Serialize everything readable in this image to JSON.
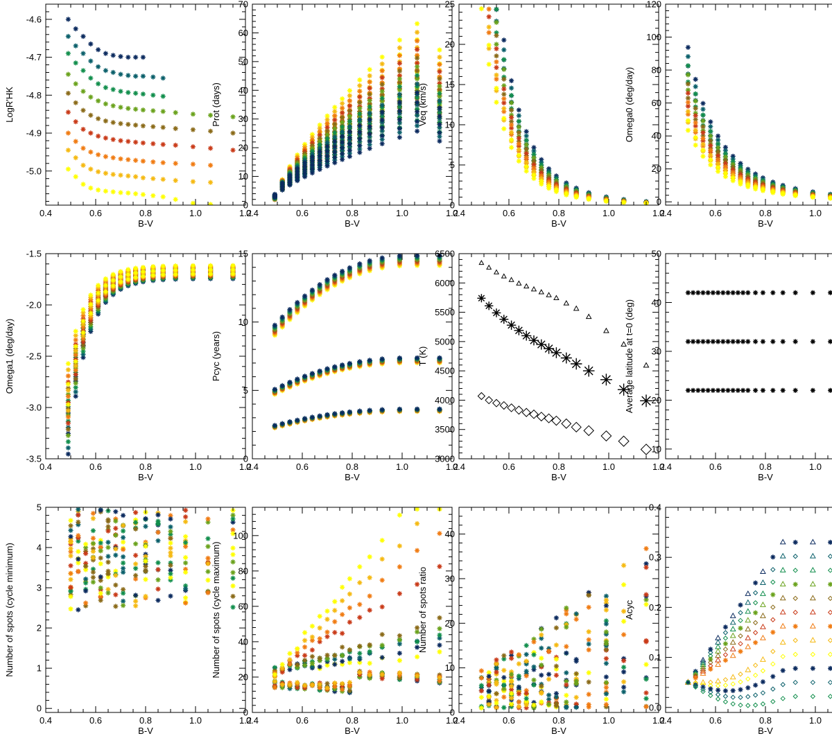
{
  "figure": {
    "palette": [
      "#0b2a5e",
      "#0a5f6a",
      "#118e4c",
      "#6aa21c",
      "#8a6a18",
      "#c93a18",
      "#f07b12",
      "#f5b911",
      "#ffff00"
    ],
    "ink": "#000000"
  },
  "chart_data": [
    {
      "id": "p1",
      "type": "scatter",
      "xlabel": "B-V",
      "ylabel": "LogR'HK",
      "xlim": [
        0.4,
        1.2
      ],
      "ylim": [
        -5.09,
        -4.56
      ],
      "xticks": [
        0.4,
        0.6,
        0.8,
        1.0,
        1.2
      ],
      "yticks": [
        -5.0,
        -4.9,
        -4.8,
        -4.7,
        -4.6
      ],
      "series": [
        {
          "name": "c0",
          "color_index": 0,
          "x": [
            0.49,
            0.52,
            0.55,
            0.58,
            0.61,
            0.64,
            0.67,
            0.7,
            0.73,
            0.76,
            0.79
          ],
          "y": [
            -4.6,
            -4.625,
            -4.645,
            -4.665,
            -4.68,
            -4.69,
            -4.695,
            -4.698,
            -4.7,
            -4.7,
            -4.7
          ]
        },
        {
          "name": "c1",
          "color_index": 1,
          "x": [
            0.49,
            0.52,
            0.55,
            0.58,
            0.61,
            0.64,
            0.67,
            0.7,
            0.73,
            0.76,
            0.79,
            0.83,
            0.87
          ],
          "y": [
            -4.645,
            -4.67,
            -4.69,
            -4.71,
            -4.725,
            -4.735,
            -4.74,
            -4.745,
            -4.748,
            -4.75,
            -4.75,
            -4.752,
            -4.755
          ]
        },
        {
          "name": "c2",
          "color_index": 2,
          "x": [
            0.49,
            0.52,
            0.55,
            0.58,
            0.61,
            0.64,
            0.67,
            0.7,
            0.73,
            0.76,
            0.79,
            0.83,
            0.87
          ],
          "y": [
            -4.69,
            -4.715,
            -4.735,
            -4.755,
            -4.77,
            -4.78,
            -4.785,
            -4.79,
            -4.793,
            -4.795,
            -4.797,
            -4.8,
            -4.803
          ]
        },
        {
          "name": "c3",
          "color_index": 3,
          "x": [
            0.49,
            0.52,
            0.55,
            0.58,
            0.61,
            0.64,
            0.67,
            0.7,
            0.73,
            0.76,
            0.79,
            0.83,
            0.87,
            0.92,
            0.99,
            1.06,
            1.15
          ],
          "y": [
            -4.745,
            -4.77,
            -4.79,
            -4.805,
            -4.815,
            -4.823,
            -4.828,
            -4.832,
            -4.835,
            -4.837,
            -4.839,
            -4.841,
            -4.843,
            -4.846,
            -4.85,
            -4.853,
            -4.857
          ]
        },
        {
          "name": "c4",
          "color_index": 4,
          "x": [
            0.49,
            0.52,
            0.55,
            0.58,
            0.61,
            0.64,
            0.67,
            0.7,
            0.73,
            0.76,
            0.79,
            0.83,
            0.87,
            0.92,
            0.99,
            1.06,
            1.15
          ],
          "y": [
            -4.795,
            -4.82,
            -4.84,
            -4.853,
            -4.862,
            -4.868,
            -4.872,
            -4.875,
            -4.877,
            -4.879,
            -4.881,
            -4.883,
            -4.885,
            -4.888,
            -4.891,
            -4.895,
            -4.9
          ]
        },
        {
          "name": "c5",
          "color_index": 5,
          "x": [
            0.49,
            0.52,
            0.55,
            0.58,
            0.61,
            0.64,
            0.67,
            0.7,
            0.73,
            0.76,
            0.79,
            0.83,
            0.87,
            0.92,
            0.99,
            1.06,
            1.15
          ],
          "y": [
            -4.845,
            -4.87,
            -4.89,
            -4.9,
            -4.908,
            -4.913,
            -4.917,
            -4.92,
            -4.922,
            -4.924,
            -4.926,
            -4.928,
            -4.93,
            -4.932,
            -4.936,
            -4.94,
            -4.945
          ]
        },
        {
          "name": "c6",
          "color_index": 6,
          "x": [
            0.49,
            0.52,
            0.55,
            0.58,
            0.61,
            0.64,
            0.67,
            0.7,
            0.73,
            0.76,
            0.79,
            0.83,
            0.87,
            0.92,
            0.99,
            1.06
          ],
          "y": [
            -4.9,
            -4.922,
            -4.94,
            -4.95,
            -4.957,
            -4.962,
            -4.965,
            -4.968,
            -4.97,
            -4.972,
            -4.974,
            -4.976,
            -4.978,
            -4.98,
            -4.982,
            -4.985
          ]
        },
        {
          "name": "c7",
          "color_index": 7,
          "x": [
            0.49,
            0.52,
            0.55,
            0.58,
            0.61,
            0.64,
            0.67,
            0.7,
            0.73,
            0.76,
            0.79,
            0.83,
            0.87,
            0.92,
            0.99,
            1.06
          ],
          "y": [
            -4.945,
            -4.965,
            -4.985,
            -4.995,
            -5.002,
            -5.006,
            -5.009,
            -5.011,
            -5.013,
            -5.015,
            -5.018,
            -5.02,
            -5.022,
            -5.025,
            -5.028,
            -5.03
          ]
        },
        {
          "name": "c8",
          "color_index": 8,
          "x": [
            0.49,
            0.52,
            0.55,
            0.58,
            0.61,
            0.64,
            0.67,
            0.7,
            0.73,
            0.76,
            0.79,
            0.83,
            0.87,
            0.92,
            0.99,
            1.06
          ],
          "y": [
            -4.995,
            -5.015,
            -5.035,
            -5.045,
            -5.05,
            -5.053,
            -5.055,
            -5.057,
            -5.058,
            -5.06,
            -5.062,
            -5.065,
            -5.068,
            -5.075,
            -5.085,
            -5.088
          ]
        }
      ]
    },
    {
      "id": "p2",
      "type": "scatter",
      "xlabel": "B-V",
      "ylabel": "Prot (days)",
      "xlim": [
        0.4,
        1.2
      ],
      "ylim": [
        0,
        70
      ],
      "xticks": [
        0.4,
        0.6,
        0.8,
        1.0,
        1.2
      ],
      "yticks": [
        0,
        10,
        20,
        30,
        40,
        50,
        60,
        70
      ],
      "family": {
        "kind": "prot",
        "xs": [
          0.49,
          0.52,
          0.55,
          0.58,
          0.61,
          0.64,
          0.67,
          0.7,
          0.73,
          0.76,
          0.79,
          0.83,
          0.87,
          0.92,
          0.99,
          1.06,
          1.15
        ],
        "n_curves": 9
      }
    },
    {
      "id": "p3",
      "type": "scatter",
      "xlabel": "B-V",
      "ylabel": "Veq (km/s)",
      "xlim": [
        0.4,
        1.2
      ],
      "ylim": [
        0,
        25
      ],
      "xticks": [
        0.4,
        0.6,
        0.8,
        1.0,
        1.2
      ],
      "yticks": [
        0,
        5,
        10,
        15,
        20,
        25
      ],
      "family": {
        "kind": "veq",
        "xs": [
          0.49,
          0.52,
          0.55,
          0.58,
          0.61,
          0.64,
          0.67,
          0.7,
          0.73,
          0.76,
          0.79,
          0.83,
          0.87,
          0.92,
          0.99,
          1.06,
          1.15
        ],
        "n_curves": 9
      }
    },
    {
      "id": "p4",
      "type": "scatter",
      "xlabel": "B-V",
      "ylabel": "Omega0 (deg/day)",
      "xlim": [
        0.4,
        1.2
      ],
      "ylim": [
        -2,
        120
      ],
      "xticks": [
        0.4,
        0.6,
        0.8,
        1.0,
        1.2
      ],
      "yticks": [
        0,
        20,
        40,
        60,
        80,
        100,
        120
      ],
      "family": {
        "kind": "omega0",
        "xs": [
          0.49,
          0.52,
          0.55,
          0.58,
          0.61,
          0.64,
          0.67,
          0.7,
          0.73,
          0.76,
          0.79,
          0.83,
          0.87,
          0.92,
          0.99,
          1.06,
          1.15
        ],
        "n_curves": 9
      }
    },
    {
      "id": "p5",
      "type": "scatter",
      "xlabel": "B-V",
      "ylabel": "Omega1 (deg/day)",
      "xlim": [
        0.4,
        1.2
      ],
      "ylim": [
        -3.5,
        -1.5
      ],
      "xticks": [
        0.4,
        0.6,
        0.8,
        1.0,
        1.2
      ],
      "yticks": [
        -3.5,
        -3.0,
        -2.5,
        -2.0,
        -1.5
      ],
      "family": {
        "kind": "omega1",
        "xs": [
          0.49,
          0.52,
          0.55,
          0.58,
          0.61,
          0.64,
          0.67,
          0.7,
          0.73,
          0.76,
          0.79,
          0.83,
          0.87,
          0.92,
          0.99,
          1.06,
          1.15
        ],
        "n_curves": 9
      }
    },
    {
      "id": "p6",
      "type": "scatter",
      "xlabel": "B-V",
      "ylabel": "Pcyc (years)",
      "xlim": [
        0.4,
        1.2
      ],
      "ylim": [
        0,
        15
      ],
      "xticks": [
        0.4,
        0.6,
        0.8,
        1.0,
        1.2
      ],
      "yticks": [
        0,
        5,
        10,
        15
      ],
      "family": {
        "kind": "pcyc",
        "xs": [
          0.49,
          0.52,
          0.55,
          0.58,
          0.61,
          0.64,
          0.67,
          0.7,
          0.73,
          0.76,
          0.79,
          0.83,
          0.87,
          0.92,
          0.99,
          1.06,
          1.15
        ],
        "n_curves": 9
      }
    },
    {
      "id": "p7",
      "type": "scatter",
      "xlabel": "B-V",
      "ylabel": "T (K)",
      "xlim": [
        0.4,
        1.2
      ],
      "ylim": [
        3000,
        6500
      ],
      "xticks": [
        0.4,
        0.6,
        0.8,
        1.0,
        1.2
      ],
      "yticks": [
        3000,
        3500,
        4000,
        4500,
        5000,
        5500,
        6000,
        6500
      ],
      "series": [
        {
          "name": "triangles",
          "marker": "triangle",
          "x": [
            0.49,
            0.52,
            0.55,
            0.58,
            0.61,
            0.64,
            0.67,
            0.7,
            0.73,
            0.76,
            0.79,
            0.83,
            0.87,
            0.92,
            0.99,
            1.06,
            1.15
          ],
          "y": [
            6340,
            6260,
            6180,
            6110,
            6050,
            5990,
            5940,
            5890,
            5840,
            5790,
            5740,
            5650,
            5560,
            5420,
            5180,
            4950,
            4590
          ]
        },
        {
          "name": "asterisks",
          "marker": "big-asterisk",
          "x": [
            0.49,
            0.52,
            0.55,
            0.58,
            0.61,
            0.64,
            0.67,
            0.7,
            0.73,
            0.76,
            0.79,
            0.83,
            0.87,
            0.92,
            0.99,
            1.06,
            1.15
          ],
          "y": [
            5740,
            5610,
            5490,
            5380,
            5280,
            5190,
            5100,
            5020,
            4950,
            4880,
            4810,
            4720,
            4620,
            4500,
            4350,
            4180,
            3990
          ]
        },
        {
          "name": "diamonds",
          "marker": "diamond",
          "x": [
            0.49,
            0.52,
            0.55,
            0.58,
            0.61,
            0.64,
            0.67,
            0.7,
            0.73,
            0.76,
            0.79,
            0.83,
            0.87,
            0.92,
            0.99,
            1.06,
            1.15
          ],
          "y": [
            4070,
            4000,
            3950,
            3910,
            3870,
            3830,
            3790,
            3760,
            3720,
            3690,
            3650,
            3600,
            3540,
            3480,
            3390,
            3300,
            3160
          ]
        }
      ]
    },
    {
      "id": "p8",
      "type": "scatter",
      "xlabel": "B-V",
      "ylabel": "Average latitude at t=0 (deg)",
      "xlim": [
        0.4,
        1.2
      ],
      "ylim": [
        8,
        50
      ],
      "xticks": [
        0.4,
        0.6,
        0.8,
        1.0,
        1.2
      ],
      "yticks": [
        10,
        20,
        30,
        40,
        50
      ],
      "series": [
        {
          "name": "lat42",
          "marker": "asterisk",
          "x": [
            0.49,
            0.51,
            0.53,
            0.55,
            0.57,
            0.59,
            0.61,
            0.63,
            0.65,
            0.67,
            0.69,
            0.71,
            0.73,
            0.76,
            0.79,
            0.83,
            0.87,
            0.92,
            0.99,
            1.06,
            1.15
          ],
          "y": [
            42,
            42,
            42,
            42,
            42,
            42,
            42,
            42,
            42,
            42,
            42,
            42,
            42,
            42,
            42,
            42,
            42,
            42,
            42,
            42,
            42
          ]
        },
        {
          "name": "lat32",
          "marker": "asterisk",
          "x": [
            0.49,
            0.51,
            0.53,
            0.55,
            0.57,
            0.59,
            0.61,
            0.63,
            0.65,
            0.67,
            0.69,
            0.71,
            0.73,
            0.76,
            0.79,
            0.83,
            0.87,
            0.92,
            0.99,
            1.06,
            1.15
          ],
          "y": [
            32,
            32,
            32,
            32,
            32,
            32,
            32,
            32,
            32,
            32,
            32,
            32,
            32,
            32,
            32,
            32,
            32,
            32,
            32,
            32,
            32
          ]
        },
        {
          "name": "lat22",
          "marker": "asterisk",
          "x": [
            0.49,
            0.51,
            0.53,
            0.55,
            0.57,
            0.59,
            0.61,
            0.63,
            0.65,
            0.67,
            0.69,
            0.71,
            0.73,
            0.76,
            0.79,
            0.83,
            0.87,
            0.92,
            0.99,
            1.06,
            1.15
          ],
          "y": [
            22,
            22,
            22,
            22,
            22,
            22,
            22,
            22,
            22,
            22,
            22,
            22,
            22,
            22,
            22,
            22,
            22,
            22,
            22,
            22,
            22
          ]
        }
      ]
    },
    {
      "id": "p9",
      "type": "scatter",
      "xlabel": "B-V",
      "ylabel": "Number of spots (cycle minimum)",
      "xlim": [
        0.4,
        1.2
      ],
      "ylim": [
        -0.1,
        5.0
      ],
      "xticks": [
        0.4,
        0.6,
        0.8,
        1.0,
        1.2
      ],
      "yticks": [
        0,
        1,
        2,
        3,
        4,
        5
      ],
      "family": {
        "kind": "random",
        "xs": [
          0.5,
          0.53,
          0.56,
          0.59,
          0.62,
          0.65,
          0.68,
          0.71,
          0.76,
          0.8,
          0.85,
          0.9,
          0.96,
          1.05,
          1.15
        ],
        "count": 260,
        "ymin": 2.45,
        "ymax": 4.95,
        "seed": 11
      }
    },
    {
      "id": "p10",
      "type": "scatter",
      "xlabel": "B-V",
      "ylabel": "Number of spots (cycle maximum)",
      "xlim": [
        0.4,
        1.2
      ],
      "ylim": [
        0,
        116
      ],
      "xticks": [
        0.4,
        0.6,
        0.8,
        1.0,
        1.2
      ],
      "yticks": [
        0,
        20,
        40,
        60,
        80,
        100
      ],
      "family": {
        "kind": "nmax",
        "xs": [
          0.49,
          0.52,
          0.55,
          0.58,
          0.61,
          0.64,
          0.67,
          0.7,
          0.73,
          0.76,
          0.79,
          0.83,
          0.87,
          0.92,
          0.99,
          1.06,
          1.15
        ],
        "n_curves": 18,
        "seed": 23
      }
    },
    {
      "id": "p11",
      "type": "scatter",
      "xlabel": "B-V",
      "ylabel": "Number of spots ratio",
      "xlim": [
        0.4,
        1.2
      ],
      "ylim": [
        0,
        46
      ],
      "xticks": [
        0.4,
        0.6,
        0.8,
        1.0,
        1.2
      ],
      "yticks": [
        0,
        10,
        20,
        30,
        40
      ],
      "family": {
        "kind": "ratio",
        "xs": [
          0.49,
          0.52,
          0.55,
          0.58,
          0.61,
          0.64,
          0.67,
          0.7,
          0.73,
          0.76,
          0.79,
          0.83,
          0.87,
          0.92,
          0.99,
          1.06,
          1.15
        ],
        "count": 300,
        "seed": 37
      }
    },
    {
      "id": "p12",
      "type": "scatter",
      "xlabel": "B-V",
      "ylabel": "Acyc",
      "xlim": [
        0.4,
        1.2
      ],
      "ylim": [
        -0.01,
        0.4
      ],
      "xticks": [
        0.4,
        0.6,
        0.8,
        1.0,
        1.2
      ],
      "yticks": [
        0.0,
        0.1,
        0.2,
        0.3,
        0.4
      ],
      "family": {
        "kind": "acyc",
        "xs": [
          0.49,
          0.52,
          0.55,
          0.58,
          0.61,
          0.64,
          0.67,
          0.7,
          0.73,
          0.76,
          0.79,
          0.83,
          0.87,
          0.92,
          0.99,
          1.06,
          1.15
        ],
        "seed": 53
      }
    }
  ]
}
